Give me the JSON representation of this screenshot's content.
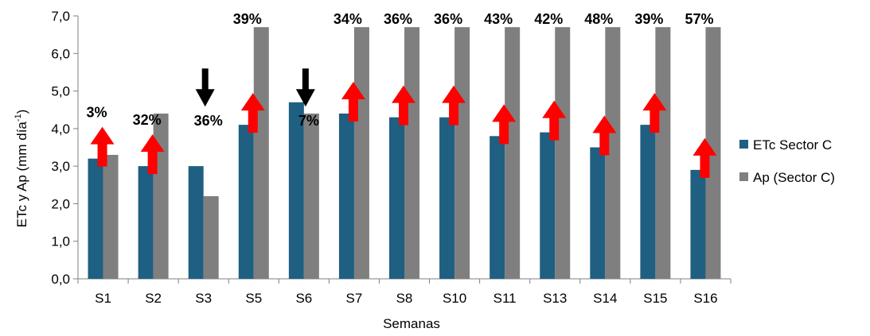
{
  "chart_data": {
    "type": "bar",
    "categories": [
      "S1",
      "S2",
      "S3",
      "S5",
      "S6",
      "S7",
      "S8",
      "S10",
      "S11",
      "S13",
      "S14",
      "S15",
      "S16"
    ],
    "series": [
      {
        "name": "ETc Sector C",
        "color": "#1F5F82",
        "values": [
          3.2,
          3.0,
          3.0,
          4.1,
          4.7,
          4.4,
          4.3,
          4.3,
          3.8,
          3.9,
          3.5,
          4.1,
          2.9
        ]
      },
      {
        "name": "Ap (Sector C)",
        "color": "#7F7F7F",
        "values": [
          3.3,
          4.4,
          2.2,
          6.7,
          4.4,
          6.7,
          6.7,
          6.7,
          6.7,
          6.7,
          6.7,
          6.7,
          6.7
        ]
      }
    ],
    "annotations": [
      {
        "label": "3%",
        "arrow": "up",
        "arrow_color": "#FF0000"
      },
      {
        "label": "32%",
        "arrow": "up",
        "arrow_color": "#FF0000"
      },
      {
        "label": "36%",
        "arrow": "down",
        "arrow_color": "#000000"
      },
      {
        "label": "39%",
        "arrow": "up",
        "arrow_color": "#FF0000"
      },
      {
        "label": "7%",
        "arrow": "down",
        "arrow_color": "#000000"
      },
      {
        "label": "34%",
        "arrow": "up",
        "arrow_color": "#FF0000"
      },
      {
        "label": "36%",
        "arrow": "up",
        "arrow_color": "#FF0000"
      },
      {
        "label": "36%",
        "arrow": "up",
        "arrow_color": "#FF0000"
      },
      {
        "label": "43%",
        "arrow": "up",
        "arrow_color": "#FF0000"
      },
      {
        "label": "42%",
        "arrow": "up",
        "arrow_color": "#FF0000"
      },
      {
        "label": "48%",
        "arrow": "up",
        "arrow_color": "#FF0000"
      },
      {
        "label": "39%",
        "arrow": "up",
        "arrow_color": "#FF0000"
      },
      {
        "label": "57%",
        "arrow": "up",
        "arrow_color": "#FF0000"
      }
    ],
    "xlabel": "Semanas",
    "ylabel": "ETc y Ap (mm día",
    "ylabel_superscript": "-1",
    "ylabel_suffix": ")",
    "ylim": [
      0,
      7
    ],
    "yticks": [
      "0,0",
      "1,0",
      "2,0",
      "3,0",
      "4,0",
      "5,0",
      "6,0",
      "7,0"
    ],
    "legend_position": "right",
    "grid": false
  }
}
